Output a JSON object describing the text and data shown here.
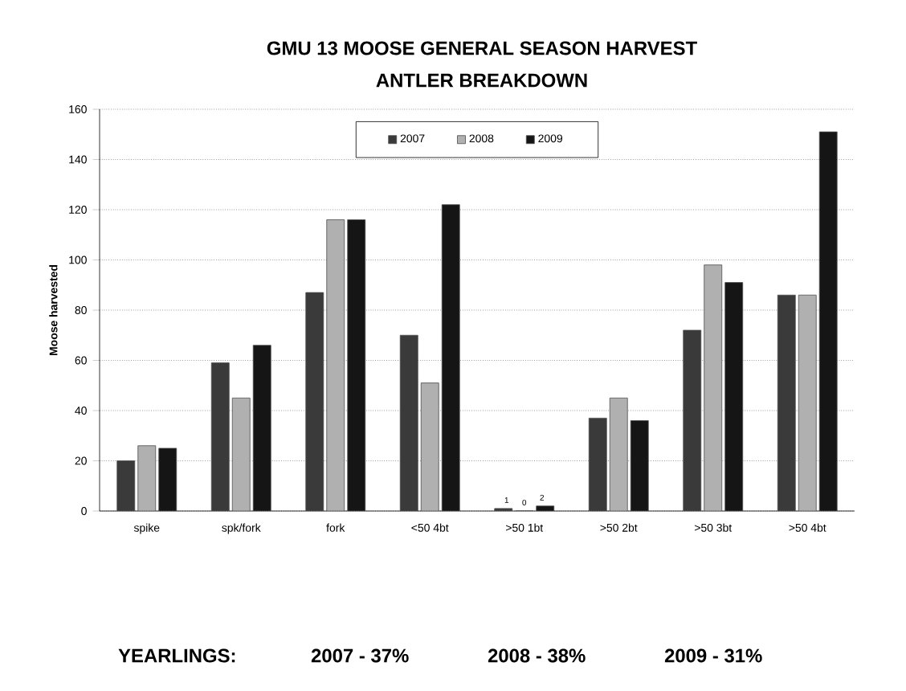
{
  "chart_data": {
    "type": "bar",
    "title": "GMU 13 MOOSE GENERAL SEASON HARVEST",
    "subtitle": "ANTLER BREAKDOWN",
    "ylabel": "Moose harvested",
    "categories": [
      "spike",
      "spk/fork",
      "fork",
      "<50 4bt",
      ">50 1bt",
      ">50 2bt",
      ">50 3bt",
      ">50 4bt"
    ],
    "series": [
      {
        "name": "2007",
        "color": "#3a3a3a",
        "values": [
          20,
          59,
          87,
          70,
          1,
          37,
          72,
          86
        ],
        "value_labels": [
          null,
          null,
          null,
          null,
          "1",
          null,
          null,
          null
        ]
      },
      {
        "name": "2008",
        "color": "#b0b0b0",
        "values": [
          26,
          45,
          116,
          51,
          0,
          45,
          98,
          86
        ],
        "value_labels": [
          null,
          null,
          null,
          null,
          "0",
          null,
          null,
          null
        ]
      },
      {
        "name": "2009",
        "color": "#151515",
        "values": [
          25,
          66,
          116,
          122,
          2,
          36,
          91,
          151
        ],
        "value_labels": [
          null,
          null,
          null,
          null,
          "2",
          null,
          null,
          null
        ]
      }
    ],
    "ylim": [
      0,
      160
    ],
    "yticks": [
      0,
      20,
      40,
      60,
      80,
      100,
      120,
      140,
      160
    ],
    "grid": "y",
    "legend": "top",
    "annotations": [
      "YEARLINGS:",
      "2007 - 37%",
      "2008 - 38%",
      "2009 - 31%"
    ]
  }
}
